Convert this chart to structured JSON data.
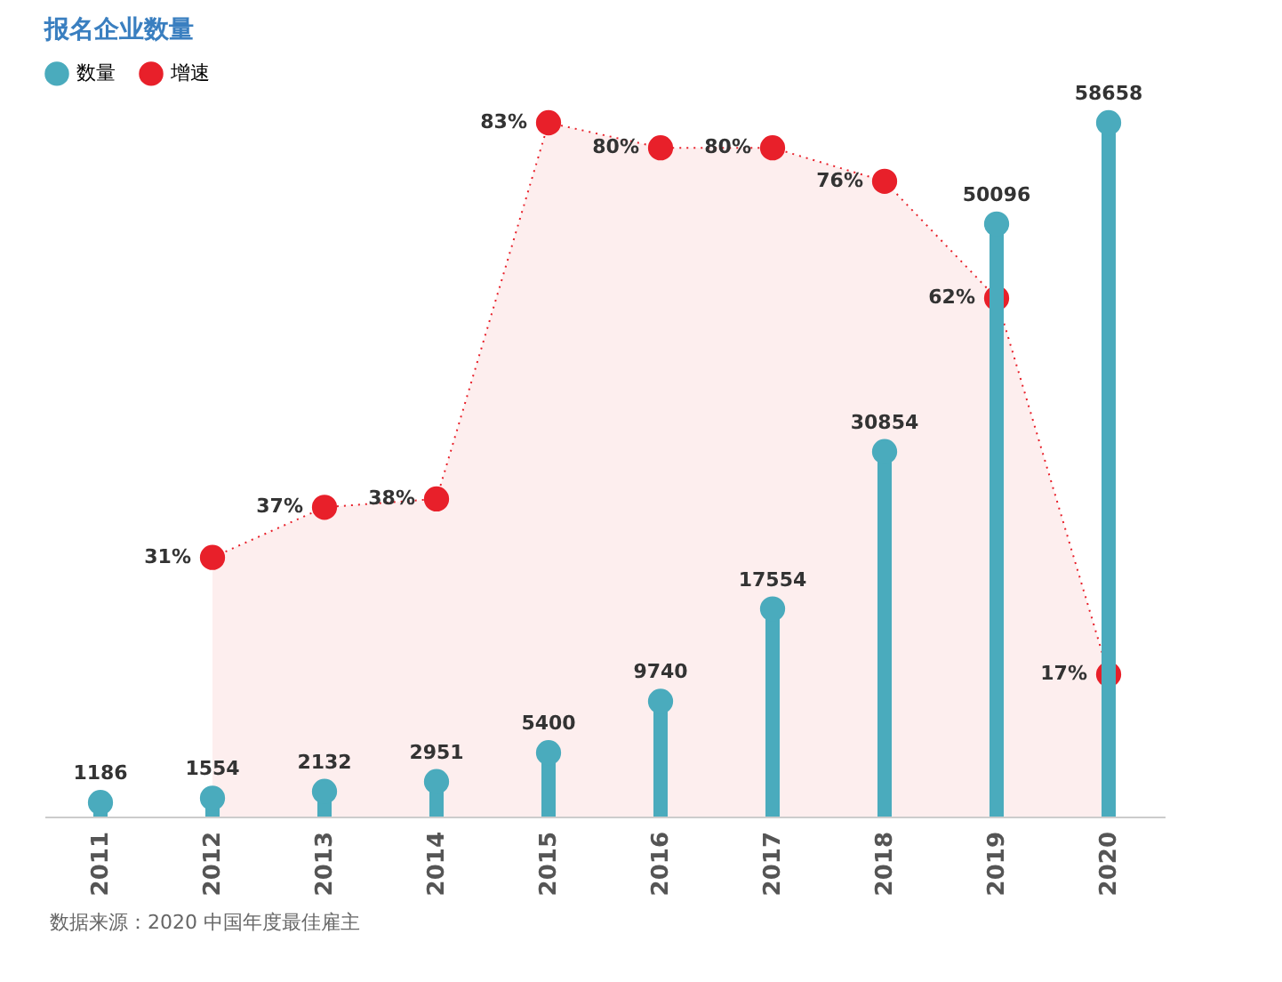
{
  "chart_data": {
    "type": "lollipop",
    "title": "报名企业数量",
    "categories": [
      "2011",
      "2012",
      "2013",
      "2014",
      "2015",
      "2016",
      "2017",
      "2018",
      "2019",
      "2020"
    ],
    "series": [
      {
        "name": "数量",
        "color": "#4aabbd",
        "values": [
          1186,
          1554,
          2132,
          2951,
          5400,
          9740,
          17554,
          30854,
          50096,
          58658
        ]
      },
      {
        "name": "增速",
        "type": "area",
        "axis": "y2",
        "color": "#e8202a",
        "line_style": "dotted",
        "marker": "circle",
        "values": [
          null,
          31,
          37,
          38,
          83,
          80,
          80,
          76,
          62,
          17
        ],
        "value_labels": [
          null,
          "31%",
          "37%",
          "38%",
          "83%",
          "80%",
          "80%",
          "76%",
          "62%",
          "17%"
        ]
      }
    ],
    "data_labels": true,
    "legend": "top left",
    "annotations": [
      "数据来源：2020 中国年度最佳雇主"
    ]
  }
}
